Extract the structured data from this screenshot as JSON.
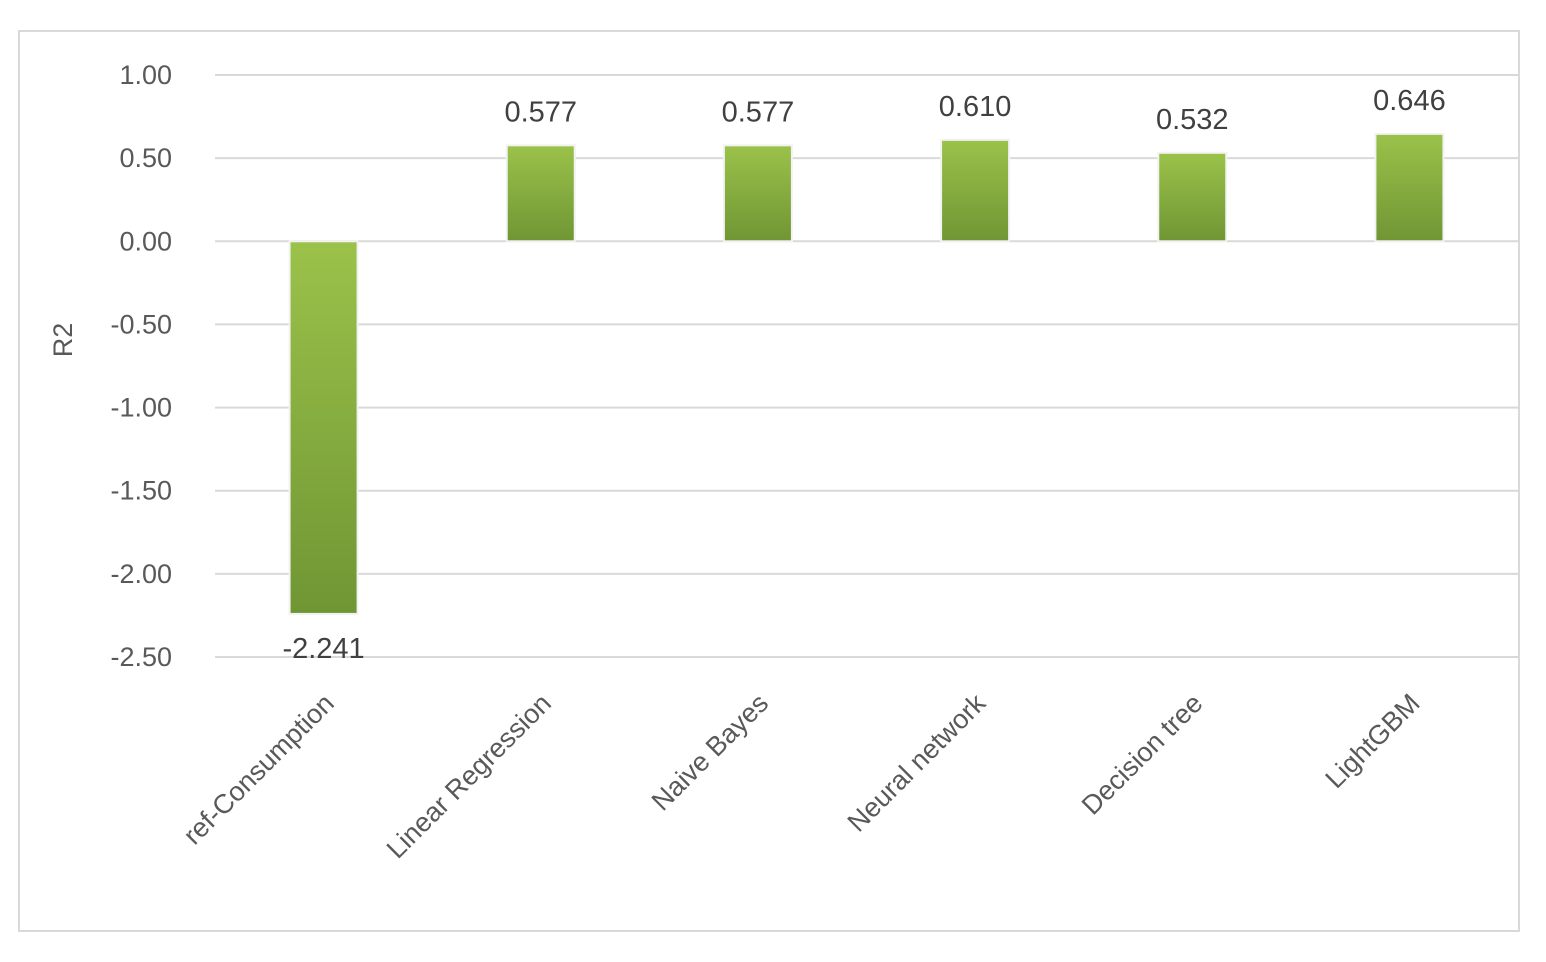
{
  "chart_data": {
    "type": "bar",
    "categories": [
      "ref-Consumption",
      "Linear Regression",
      "Naive Bayes",
      "Neural network",
      "Decision tree",
      "LightGBM"
    ],
    "values": [
      -2.241,
      0.577,
      0.577,
      0.61,
      0.532,
      0.646
    ],
    "data_labels": [
      "-2.241",
      "0.577",
      "0.577",
      "0.610",
      "0.532",
      "0.646"
    ],
    "ylabel": "R2",
    "xlabel": "",
    "ylim": [
      -2.5,
      1.0
    ],
    "yticks": [
      "1.00",
      "0.50",
      "0.00",
      "-0.50",
      "-1.00",
      "-1.50",
      "-2.00",
      "-2.50"
    ],
    "ytick_values": [
      1.0,
      0.5,
      0.0,
      -0.5,
      -1.0,
      -1.5,
      -2.0,
      -2.5
    ],
    "grid": true,
    "legend": "none",
    "bar_color_top": "#9bc24a",
    "bar_color_bottom": "#6f9634"
  }
}
